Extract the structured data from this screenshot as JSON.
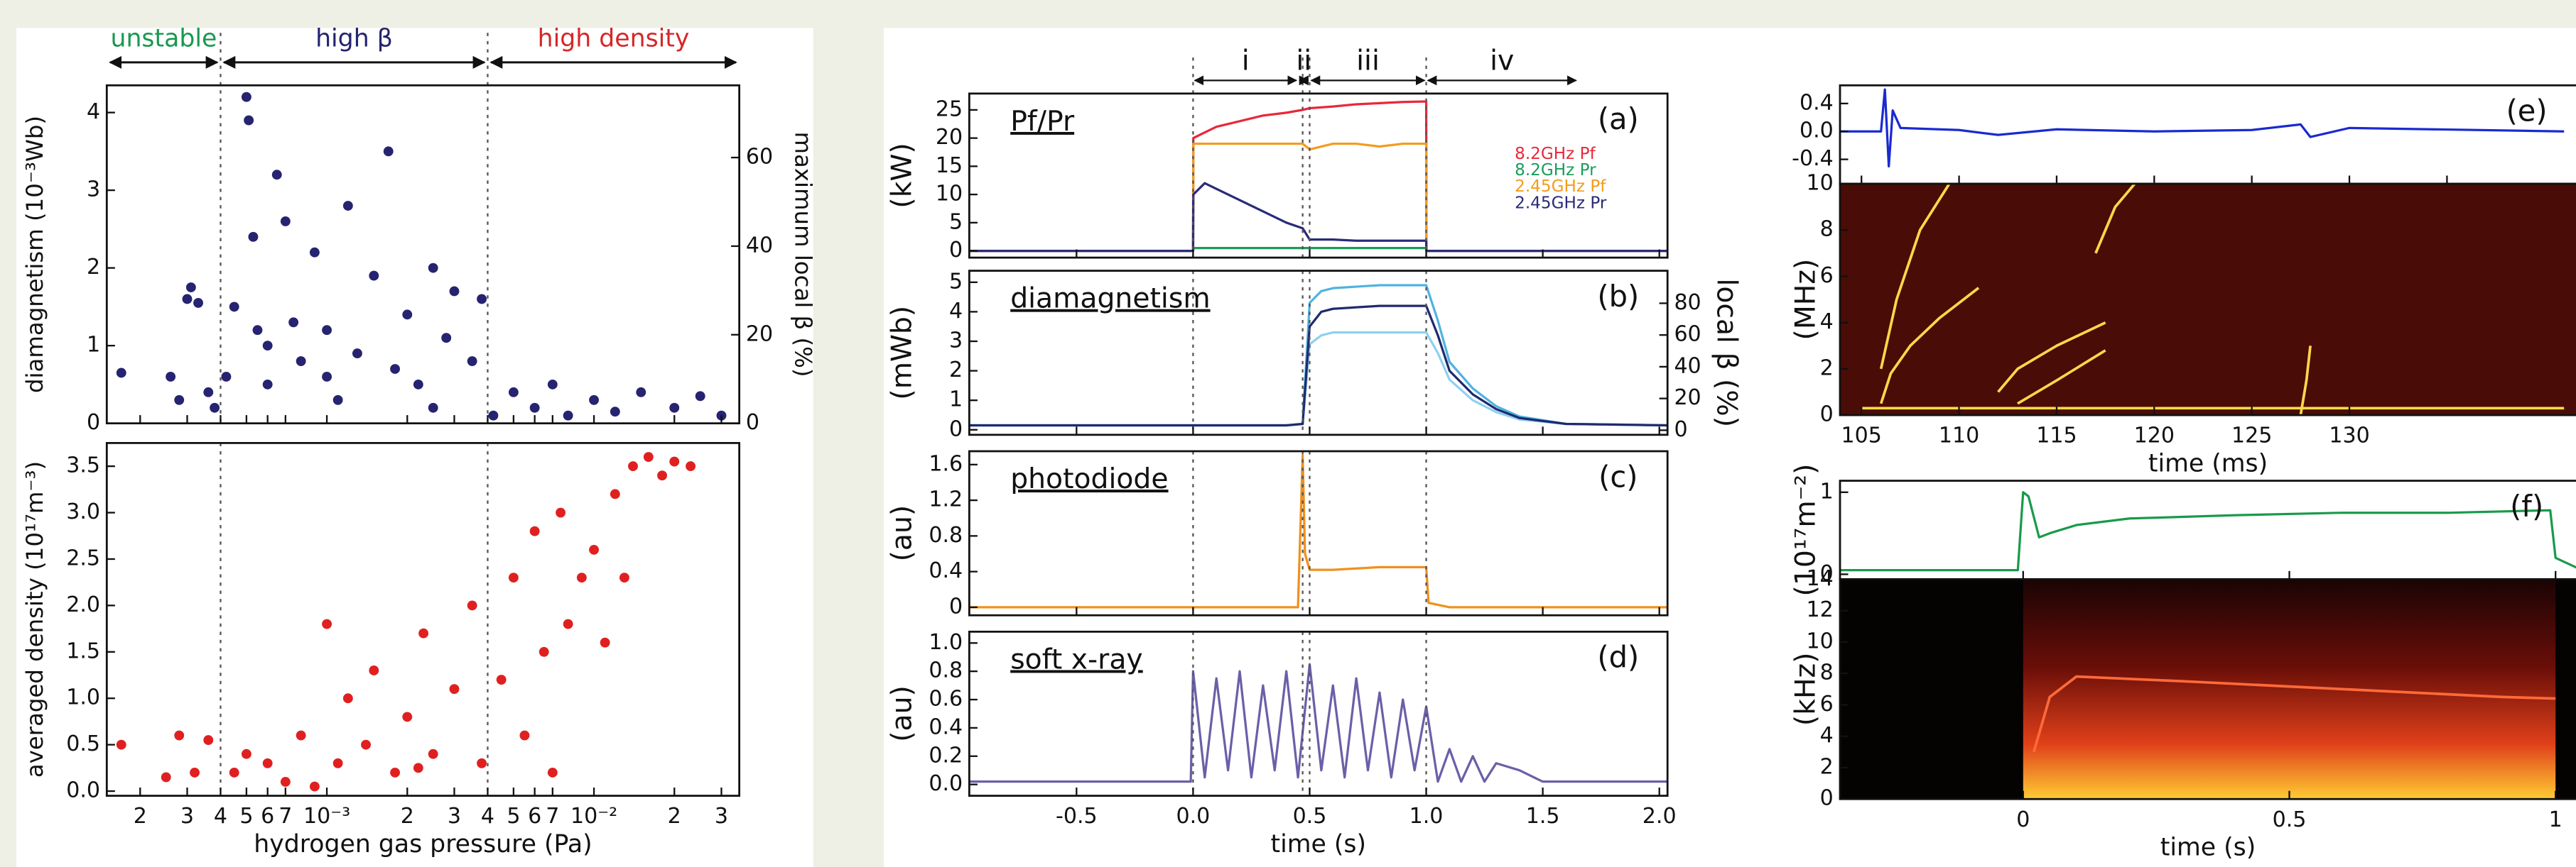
{
  "chart_data": [
    {
      "type": "scatter",
      "xscale": "log",
      "xlim": [
        0.00015,
        0.035
      ],
      "xticks": [
        0.0002,
        0.0003,
        0.0004,
        0.0005,
        0.0006,
        0.0007,
        0.001,
        0.002,
        0.003,
        0.004,
        0.005,
        0.006,
        0.007,
        0.01,
        0.02,
        0.03
      ],
      "xtick_labels": false,
      "ylim": [
        0,
        4.35
      ],
      "yticks": [
        0,
        1,
        2,
        3,
        4
      ],
      "y2lim": [
        0,
        76.3
      ],
      "y2ticks": [
        0,
        20,
        40,
        60
      ],
      "ylabel": "diamagnetism (10⁻³Wb)",
      "y2label": "maximum local β (%)",
      "color": "#262370",
      "vlines": [
        0.0004,
        0.004
      ],
      "regions": [
        {
          "label": "unstable",
          "color": "#1a9850",
          "from": 0.00015,
          "to": 0.0004
        },
        {
          "label": "high β",
          "color": "#262370",
          "from": 0.0004,
          "to": 0.004
        },
        {
          "label": "high density",
          "color": "#d62728",
          "from": 0.004,
          "to": 0.035
        }
      ],
      "x": [
        0.00017,
        0.00026,
        0.00028,
        0.0003,
        0.00031,
        0.00033,
        0.00036,
        0.00038,
        0.00042,
        0.00045,
        0.0005,
        0.00051,
        0.00053,
        0.00055,
        0.0006,
        0.00065,
        0.0007,
        0.00075,
        0.0008,
        0.0009,
        0.001,
        0.0011,
        0.0012,
        0.0013,
        0.0015,
        0.0017,
        0.0018,
        0.002,
        0.0022,
        0.0025,
        0.0028,
        0.003,
        0.0035,
        0.0038,
        0.0042,
        0.005,
        0.006,
        0.007,
        0.008,
        0.01,
        0.012,
        0.015,
        0.02,
        0.025,
        0.03,
        0.001,
        0.0006,
        0.0025
      ],
      "values": [
        0.65,
        0.6,
        0.3,
        1.6,
        1.75,
        1.55,
        0.4,
        0.2,
        0.6,
        1.5,
        4.2,
        3.9,
        2.4,
        1.2,
        0.5,
        3.2,
        2.6,
        1.3,
        0.8,
        2.2,
        1.2,
        0.3,
        2.8,
        0.9,
        1.9,
        3.5,
        0.7,
        1.4,
        0.5,
        2.0,
        1.1,
        1.7,
        0.8,
        1.6,
        0.1,
        0.4,
        0.2,
        0.5,
        0.1,
        0.3,
        0.15,
        0.4,
        0.2,
        0.35,
        0.1,
        0.6,
        1.0,
        0.2
      ]
    },
    {
      "type": "scatter",
      "xscale": "log",
      "xlim": [
        0.00015,
        0.035
      ],
      "xticks": [
        {
          "value": 0.0002,
          "label": "2"
        },
        {
          "value": 0.0003,
          "label": "3"
        },
        {
          "value": 0.0004,
          "label": "4"
        },
        {
          "value": 0.0005,
          "label": "5"
        },
        {
          "value": 0.0006,
          "label": "6"
        },
        {
          "value": 0.0007,
          "label": "7"
        },
        {
          "value": 0.001,
          "label": "10⁻³"
        },
        {
          "value": 0.002,
          "label": "2"
        },
        {
          "value": 0.003,
          "label": "3"
        },
        {
          "value": 0.004,
          "label": "4"
        },
        {
          "value": 0.005,
          "label": "5"
        },
        {
          "value": 0.006,
          "label": "6"
        },
        {
          "value": 0.007,
          "label": "7"
        },
        {
          "value": 0.01,
          "label": "10⁻²"
        },
        {
          "value": 0.02,
          "label": "2"
        },
        {
          "value": 0.03,
          "label": "3"
        }
      ],
      "ylim": [
        -0.05,
        3.75
      ],
      "yticks": [
        {
          "value": 0,
          "label": "0.0"
        },
        0.5,
        {
          "value": 1,
          "label": "1.0"
        },
        1.5,
        {
          "value": 2,
          "label": "2.0"
        },
        2.5,
        {
          "value": 3,
          "label": "3.0"
        },
        3.5
      ],
      "ylabel": "averaged density (10¹⁷m⁻³)",
      "xlabel": "hydrogen gas pressure (Pa)",
      "color": "#e02020",
      "vlines": [
        0.0004,
        0.004
      ],
      "x": [
        0.00017,
        0.00025,
        0.00028,
        0.00032,
        0.00036,
        0.00045,
        0.0005,
        0.0006,
        0.0007,
        0.0008,
        0.001,
        0.0011,
        0.0012,
        0.0014,
        0.0015,
        0.0018,
        0.002,
        0.0023,
        0.0025,
        0.003,
        0.0035,
        0.0038,
        0.0045,
        0.005,
        0.0055,
        0.006,
        0.0065,
        0.007,
        0.0075,
        0.008,
        0.009,
        0.01,
        0.011,
        0.012,
        0.014,
        0.016,
        0.018,
        0.02,
        0.023,
        0.013,
        0.0009,
        0.0022
      ],
      "values": [
        0.5,
        0.15,
        0.6,
        0.2,
        0.55,
        0.2,
        0.4,
        0.3,
        0.1,
        0.6,
        1.8,
        0.3,
        1.0,
        0.5,
        1.3,
        0.2,
        0.8,
        1.7,
        0.4,
        1.1,
        2.0,
        0.3,
        1.2,
        2.3,
        0.6,
        2.8,
        1.5,
        0.2,
        3.0,
        1.8,
        2.3,
        2.6,
        1.6,
        3.2,
        3.5,
        3.6,
        3.4,
        3.55,
        3.5,
        2.3,
        0.05,
        0.25
      ]
    },
    {
      "type": "line",
      "xlim": [
        -0.96,
        2.035
      ],
      "xticks": [
        -0.5,
        0,
        0.5,
        1,
        1.5,
        2
      ],
      "xtick_labels": false,
      "ylim": [
        -1.2,
        27.9
      ],
      "yticks": [
        0,
        5,
        10,
        15,
        20,
        25
      ],
      "ylabel": "(kW)",
      "inset_title": "Pf/Pr",
      "panel": "(a)",
      "vlines": [
        0,
        0.47,
        0.5,
        1.0
      ],
      "phases": [
        {
          "label": "i",
          "from": 0,
          "to": 0.45
        },
        {
          "label": "ii",
          "from": 0.45,
          "to": 0.5
        },
        {
          "label": "iii",
          "from": 0.5,
          "to": 1.0
        },
        {
          "label": "iv",
          "from": 1.0,
          "to": 1.65
        }
      ],
      "x": [
        -0.96,
        0,
        0.001,
        0.05,
        0.1,
        0.2,
        0.3,
        0.4,
        0.47,
        0.5,
        0.6,
        0.7,
        0.8,
        0.9,
        1.0,
        1.001,
        2.035
      ],
      "series": [
        {
          "name": "8.2GHz Pf",
          "color": "#e8283a",
          "values": [
            0,
            0,
            20,
            21,
            22,
            23,
            24,
            24.5,
            25,
            25.3,
            25.6,
            26,
            26.2,
            26.4,
            26.5,
            0,
            0
          ]
        },
        {
          "name": "8.2GHz Pr",
          "color": "#1a9c5a",
          "values": [
            0,
            0,
            0.5,
            0.5,
            0.5,
            0.5,
            0.5,
            0.5,
            0.5,
            0.5,
            0.5,
            0.5,
            0.5,
            0.5,
            0.5,
            0,
            0
          ]
        },
        {
          "name": "2.45GHz Pf",
          "color": "#f39c1e",
          "values": [
            0,
            0,
            19,
            19,
            19,
            19,
            19,
            19,
            19,
            18,
            19,
            19,
            18.5,
            19,
            19,
            0,
            0
          ]
        },
        {
          "name": "2.45GHz Pr",
          "color": "#2a2a7a",
          "values": [
            0,
            0,
            10,
            12,
            11,
            9,
            7,
            5,
            4,
            2,
            2,
            1.8,
            1.8,
            1.8,
            1.8,
            0,
            0
          ]
        }
      ]
    },
    {
      "type": "line",
      "xlim": [
        -0.96,
        2.035
      ],
      "xticks": [
        -0.5,
        0,
        0.5,
        1,
        1.5,
        2
      ],
      "xtick_labels": false,
      "ylim": [
        -0.17,
        5.39
      ],
      "yticks": [
        0,
        1,
        2,
        3,
        4,
        5
      ],
      "y2lim": [
        -2.9,
        100.5
      ],
      "y2ticks": [
        0,
        20,
        40,
        60,
        80
      ],
      "ylabel": "(mWb)",
      "y2label": "local β (%)",
      "inset_title": "diamagnetism",
      "panel": "(b)",
      "vlines": [
        0,
        0.47,
        0.5,
        1.0
      ],
      "x": [
        -0.96,
        0,
        0.4,
        0.47,
        0.5,
        0.55,
        0.6,
        0.8,
        1.0,
        1.05,
        1.1,
        1.2,
        1.3,
        1.4,
        1.6,
        2.035
      ],
      "series": [
        {
          "color": "#4fb3e0",
          "values": [
            0.15,
            0.15,
            0.15,
            0.2,
            4.3,
            4.7,
            4.8,
            4.9,
            4.9,
            3.7,
            2.3,
            1.4,
            0.8,
            0.45,
            0.2,
            0.15
          ]
        },
        {
          "color": "#8fd0f0",
          "values": [
            0.15,
            0.15,
            0.15,
            0.2,
            2.9,
            3.2,
            3.3,
            3.3,
            3.3,
            2.6,
            1.7,
            1.0,
            0.6,
            0.35,
            0.2,
            0.15
          ]
        },
        {
          "color": "#1f2a6e",
          "values": [
            0.15,
            0.15,
            0.15,
            0.2,
            3.5,
            4.0,
            4.1,
            4.2,
            4.2,
            3.2,
            2.0,
            1.2,
            0.7,
            0.4,
            0.2,
            0.15
          ]
        }
      ]
    },
    {
      "type": "line",
      "xlim": [
        -0.96,
        2.035
      ],
      "xticks": [
        -0.5,
        0,
        0.5,
        1,
        1.5,
        2
      ],
      "xtick_labels": false,
      "ylim": [
        -0.09,
        1.75
      ],
      "yticks": [
        0,
        0.4,
        0.8,
        1.2,
        1.6
      ],
      "ylabel": "(au)",
      "inset_title": "photodiode",
      "panel": "(c)",
      "vlines": [
        0,
        0.47,
        0.5,
        1.0
      ],
      "x": [
        -0.96,
        0,
        0.45,
        0.47,
        0.48,
        0.5,
        0.6,
        0.8,
        1.0,
        1.01,
        1.1,
        2.035
      ],
      "series": [
        {
          "color": "#f0901e",
          "values": [
            0,
            0,
            0,
            1.7,
            0.6,
            0.42,
            0.42,
            0.45,
            0.45,
            0.05,
            0,
            0
          ]
        }
      ]
    },
    {
      "type": "line",
      "xlim": [
        -0.96,
        2.035
      ],
      "xticks": [
        -0.5,
        {
          "value": 0,
          "label": "0.0"
        },
        0.5,
        {
          "value": 1,
          "label": "1.0"
        },
        1.5,
        {
          "value": 2,
          "label": "2.0"
        }
      ],
      "xlabel": "time (s)",
      "ylim": [
        -0.08,
        1.08
      ],
      "yticks": [
        {
          "value": 0,
          "label": "0.0"
        },
        0.2,
        0.4,
        0.6,
        0.8,
        {
          "value": 1,
          "label": "1.0"
        }
      ],
      "ylabel": "(au)",
      "inset_title": "soft x-ray",
      "panel": "(d)",
      "vlines": [
        0,
        0.47,
        0.5,
        1.0
      ],
      "x": [
        -0.96,
        -0.01,
        0.0,
        0.05,
        0.1,
        0.15,
        0.2,
        0.25,
        0.3,
        0.35,
        0.4,
        0.45,
        0.5,
        0.55,
        0.6,
        0.65,
        0.7,
        0.75,
        0.8,
        0.85,
        0.9,
        0.95,
        1.0,
        1.05,
        1.1,
        1.15,
        1.2,
        1.25,
        1.3,
        1.4,
        1.5,
        1.6,
        2.035
      ],
      "series": [
        {
          "color": "#6a60a8",
          "values": [
            0.02,
            0.02,
            0.8,
            0.05,
            0.75,
            0.1,
            0.8,
            0.05,
            0.7,
            0.1,
            0.8,
            0.05,
            0.85,
            0.1,
            0.7,
            0.05,
            0.75,
            0.1,
            0.65,
            0.05,
            0.6,
            0.1,
            0.55,
            0.02,
            0.25,
            0.02,
            0.2,
            0.02,
            0.15,
            0.1,
            0.02,
            0.02,
            0.02
          ]
        }
      ]
    },
    {
      "type": "line",
      "xlim": [
        103.9,
        142.2
      ],
      "xticks": [
        105,
        110,
        115,
        120,
        125,
        130,
        135
      ],
      "xtick_labels": false,
      "ylim": [
        -0.75,
        0.66
      ],
      "yticks": [
        0.4,
        {
          "value": 0,
          "label": "0.0"
        },
        -0.4
      ],
      "panel": "(e)",
      "x": [
        103.9,
        105,
        106,
        106.2,
        106.4,
        106.6,
        107,
        110,
        112,
        115,
        120,
        125,
        127.5,
        128,
        130,
        141
      ],
      "series": [
        {
          "color": "#1a2ad0",
          "values": [
            0,
            0,
            0,
            0.6,
            -0.5,
            0.3,
            0.05,
            0.02,
            -0.05,
            0.03,
            0,
            0.02,
            0.1,
            -0.08,
            0.05,
            0
          ]
        }
      ]
    },
    {
      "type": "spectrogram",
      "xlim": [
        103.9,
        142.2
      ],
      "xticks": [
        105,
        110,
        115,
        120,
        125,
        130
      ],
      "xlabel": "time (ms)",
      "ylim": [
        0,
        10
      ],
      "yticks": [
        0,
        2,
        4,
        6,
        8,
        10
      ],
      "ylabel": "(MHz)",
      "background": "#4a0c06",
      "ridge_color": "#ffd84a",
      "ridges": [
        {
          "x": [
            106,
            106.5,
            107.5,
            109,
            111
          ],
          "values": [
            0.5,
            1.8,
            3,
            4.2,
            5.5
          ]
        },
        {
          "x": [
            106,
            106.8,
            108,
            109.5
          ],
          "values": [
            2,
            5,
            8,
            10
          ]
        },
        {
          "x": [
            112,
            113,
            115,
            117.5
          ],
          "values": [
            1,
            2,
            3,
            4
          ]
        },
        {
          "x": [
            113,
            115,
            117.5
          ],
          "values": [
            0.5,
            1.5,
            2.8
          ]
        },
        {
          "x": [
            117,
            118,
            119
          ],
          "values": [
            7,
            9,
            10
          ]
        },
        {
          "x": [
            127.5,
            127.8,
            128
          ],
          "values": [
            0,
            1.5,
            3
          ]
        },
        {
          "x": [
            105,
            141
          ],
          "values": [
            0.3,
            0.3
          ]
        }
      ]
    },
    {
      "type": "line",
      "xlim": [
        -0.344,
        1.06
      ],
      "xticks": [
        0,
        0.5,
        1
      ],
      "xtick_labels": false,
      "ylim": [
        -0.06,
        1.14
      ],
      "yticks": [
        0,
        1
      ],
      "ylabel": "(10¹⁷m⁻²)",
      "panel": "(f)",
      "x": [
        -0.344,
        -0.01,
        0,
        0.01,
        0.03,
        0.05,
        0.1,
        0.2,
        0.4,
        0.6,
        0.8,
        0.99,
        1.0,
        1.05,
        1.06
      ],
      "series": [
        {
          "color": "#1a9a4a",
          "values": [
            0.05,
            0.05,
            1,
            0.95,
            0.45,
            0.5,
            0.6,
            0.68,
            0.72,
            0.75,
            0.75,
            0.78,
            0.2,
            0.05,
            0.04
          ]
        }
      ]
    },
    {
      "type": "spectrogram",
      "xlim": [
        -0.344,
        1.06
      ],
      "xticks": [
        0,
        0.5,
        1
      ],
      "xlabel": "time (s)",
      "ylim": [
        0,
        14
      ],
      "yticks": [
        0,
        2,
        4,
        6,
        8,
        10,
        12,
        14
      ],
      "ylabel": "(kHz)",
      "background": "#050202",
      "ridge_color": "#ff6a3a",
      "burst": [
        0,
        1
      ],
      "ridges": [
        {
          "x": [
            0.02,
            0.05,
            0.1,
            0.3,
            0.6,
            0.9,
            1.0
          ],
          "values": [
            3,
            6.5,
            7.8,
            7.5,
            7,
            6.5,
            6.4
          ]
        }
      ]
    }
  ]
}
